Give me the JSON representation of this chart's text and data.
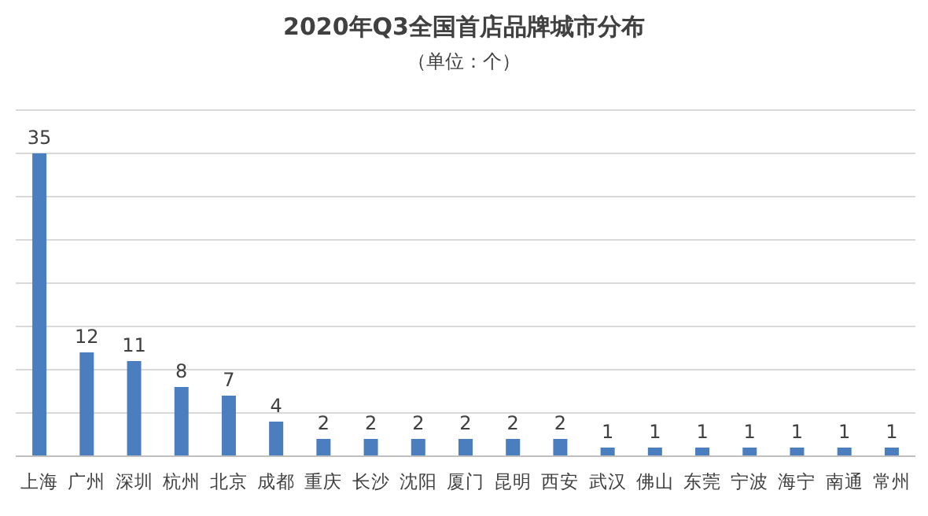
{
  "chart_data": {
    "type": "bar",
    "title": "2020年Q3全国首店品牌城市分布",
    "subtitle": "（单位：个）",
    "categories": [
      "上海",
      "广州",
      "深圳",
      "杭州",
      "北京",
      "成都",
      "重庆",
      "长沙",
      "沈阳",
      "厦门",
      "昆明",
      "西安",
      "武汉",
      "佛山",
      "东莞",
      "宁波",
      "海宁",
      "南通",
      "常州"
    ],
    "values": [
      35,
      12,
      11,
      8,
      7,
      4,
      2,
      2,
      2,
      2,
      2,
      2,
      1,
      1,
      1,
      1,
      1,
      1,
      1
    ],
    "color": "#4a7ebf",
    "ylim": [
      0,
      40
    ],
    "yticks": [
      {
        "value": 0,
        "label": null
      },
      {
        "value": 5,
        "label": null
      },
      {
        "value": 10,
        "label": null
      },
      {
        "value": 15,
        "label": null
      },
      {
        "value": 20,
        "label": null
      },
      {
        "value": 25,
        "label": null
      },
      {
        "value": 30,
        "label": null
      },
      {
        "value": 35,
        "label": null
      },
      {
        "value": 40,
        "label": null
      }
    ],
    "grid": "y",
    "data_labels": true,
    "tick_labels": "x"
  }
}
